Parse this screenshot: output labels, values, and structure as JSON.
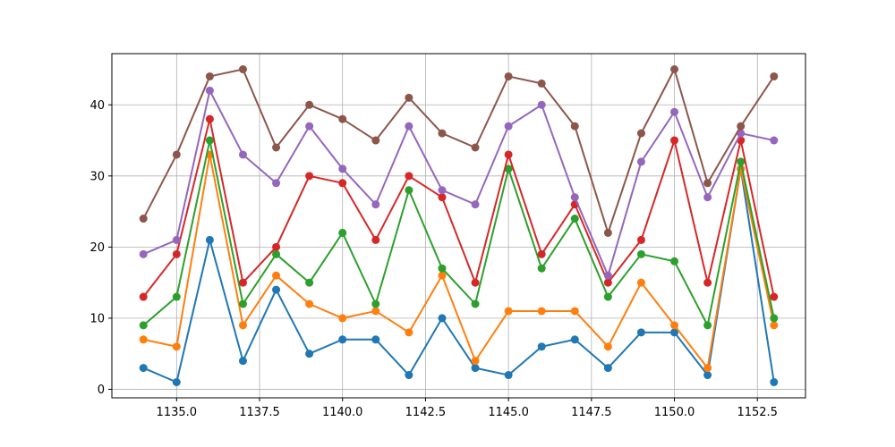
{
  "chart_data": {
    "type": "line",
    "title": "",
    "xlabel": "",
    "ylabel": "",
    "x": [
      1134,
      1135,
      1136,
      1137,
      1138,
      1139,
      1140,
      1141,
      1142,
      1143,
      1144,
      1145,
      1146,
      1147,
      1148,
      1149,
      1150,
      1151,
      1152,
      1153
    ],
    "xlim": [
      1133.05,
      1153.95
    ],
    "ylim": [
      -1.2,
      47.2
    ],
    "x_ticks": [
      1135.0,
      1137.5,
      1140.0,
      1142.5,
      1145.0,
      1147.5,
      1150.0,
      1152.5
    ],
    "x_tick_labels": [
      "1135.0",
      "1137.5",
      "1140.0",
      "1142.5",
      "1145.0",
      "1147.5",
      "1150.0",
      "1152.5"
    ],
    "y_ticks": [
      0,
      10,
      20,
      30,
      40
    ],
    "y_tick_labels": [
      "0",
      "10",
      "20",
      "30",
      "40"
    ],
    "grid": true,
    "markers": true,
    "series": [
      {
        "color": "#1f77b4",
        "values": [
          3,
          1,
          21,
          4,
          14,
          5,
          7,
          7,
          2,
          10,
          3,
          2,
          6,
          7,
          3,
          8,
          8,
          2,
          31,
          1
        ]
      },
      {
        "color": "#ff7f0e",
        "values": [
          7,
          6,
          33,
          9,
          16,
          12,
          10,
          11,
          8,
          16,
          4,
          11,
          11,
          11,
          6,
          15,
          9,
          3,
          31,
          9
        ]
      },
      {
        "color": "#2ca02c",
        "values": [
          9,
          13,
          35,
          12,
          19,
          15,
          22,
          12,
          28,
          17,
          12,
          31,
          17,
          24,
          13,
          19,
          18,
          9,
          32,
          10
        ]
      },
      {
        "color": "#d62728",
        "values": [
          13,
          19,
          38,
          15,
          20,
          30,
          29,
          21,
          30,
          27,
          15,
          33,
          19,
          26,
          15,
          21,
          35,
          15,
          35,
          13
        ]
      },
      {
        "color": "#9467bd",
        "values": [
          19,
          21,
          42,
          33,
          29,
          37,
          31,
          26,
          37,
          28,
          26,
          37,
          40,
          27,
          16,
          32,
          39,
          27,
          36,
          35
        ]
      },
      {
        "color": "#8c564b",
        "values": [
          24,
          33,
          44,
          45,
          34,
          40,
          38,
          35,
          41,
          36,
          34,
          44,
          43,
          37,
          22,
          36,
          45,
          29,
          37,
          44
        ]
      }
    ]
  }
}
